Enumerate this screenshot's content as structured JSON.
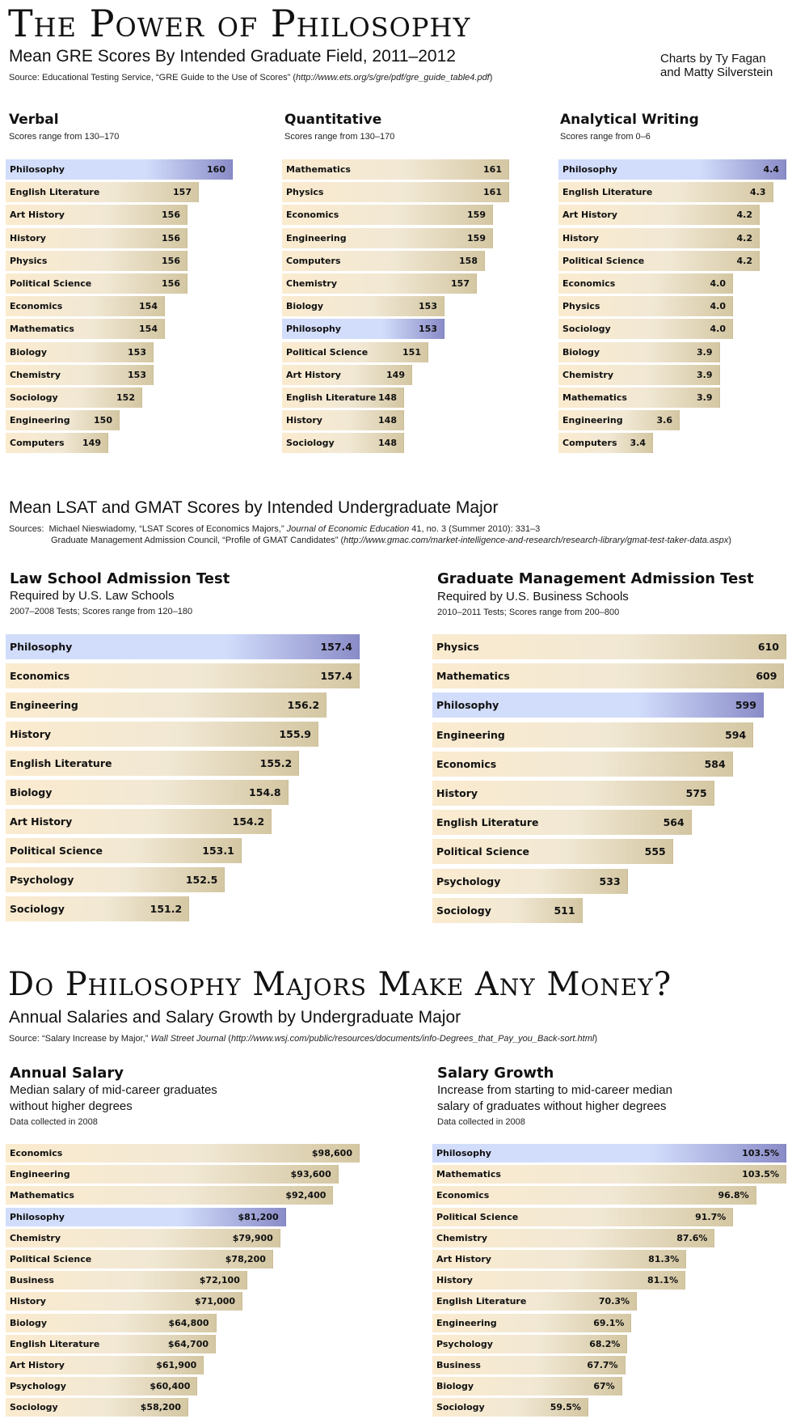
{
  "header": {
    "title": "The Power of Philosophy",
    "subtitle": "Mean GRE Scores By Intended Graduate Field, 2011–2012",
    "source_prefix": "Source: Educational Testing Service, “GRE Guide to the Use of Scores” (",
    "source_url": "http://www.ets.org/s/gre/pdf/gre_guide_table4.pdf",
    "source_suffix": ")",
    "credit_line1": "Charts by Ty Fagan",
    "credit_line2": "and Matty Silverstein"
  },
  "section2": {
    "subtitle": "Mean LSAT and GMAT Scores by Intended Undergraduate Major",
    "sources_label": "Sources:",
    "source1_prefix": "Michael Nieswiadomy, “LSAT Scores of Economics Majors,” ",
    "source1_journal": "Journal of Economic Education",
    "source1_suffix": " 41, no. 3 (Summer 2010): 331–3",
    "source2_prefix": "Graduate Management Admission Council, “Profile of GMAT Candidates” (",
    "source2_url": "http://www.gmac.com/market-intelligence-and-research/research-library/gmat-test-taker-data.aspx",
    "source2_suffix": ")"
  },
  "section3": {
    "title": "Do Philosophy Majors Make Any Money?",
    "subtitle": "Annual Salaries and Salary Growth by Undergraduate Major",
    "source_prefix": "Source: “Salary Increase by Major,” ",
    "source_journal": "Wall Street Journal",
    "source_mid": " (",
    "source_url": "http://www.wsj.com/public/resources/documents/info-Degrees_that_Pay_you_Back-sort.html",
    "source_suffix": ")"
  },
  "colors": {
    "highlight": "#d2ddfb",
    "highlight_end": "#8a8cc8",
    "bar": "#fbebcf",
    "bar_end": "#d4c7a3"
  },
  "chart_data": [
    {
      "id": "verbal",
      "type": "bar",
      "orientation": "horizontal",
      "title": "Verbal",
      "desc": "Scores range from 130–170",
      "highlight": "Philosophy",
      "categories": [
        "Philosophy",
        "English Literature",
        "Art History",
        "History",
        "Physics",
        "Political Science",
        "Economics",
        "Mathematics",
        "Biology",
        "Chemistry",
        "Sociology",
        "Engineering",
        "Computers"
      ],
      "values": [
        160,
        157,
        156,
        156,
        156,
        156,
        154,
        154,
        153,
        153,
        152,
        150,
        149
      ],
      "labels": [
        "160",
        "157",
        "156",
        "156",
        "156",
        "156",
        "154",
        "154",
        "153",
        "153",
        "152",
        "150",
        "149"
      ]
    },
    {
      "id": "quant",
      "type": "bar",
      "orientation": "horizontal",
      "title": "Quantitative",
      "desc": "Scores range from 130–170",
      "highlight": "Philosophy",
      "categories": [
        "Mathematics",
        "Physics",
        "Economics",
        "Engineering",
        "Computers",
        "Chemistry",
        "Biology",
        "Philosophy",
        "Political Science",
        "Art History",
        "English Literature",
        "History",
        "Sociology"
      ],
      "values": [
        161,
        161,
        159,
        159,
        158,
        157,
        153,
        153,
        151,
        149,
        148,
        148,
        148
      ],
      "labels": [
        "161",
        "161",
        "159",
        "159",
        "158",
        "157",
        "153",
        "153",
        "151",
        "149",
        "148",
        "148",
        "148"
      ]
    },
    {
      "id": "aw",
      "type": "bar",
      "orientation": "horizontal",
      "title": "Analytical Writing",
      "desc": "Scores range from 0–6",
      "highlight": "Philosophy",
      "categories": [
        "Philosophy",
        "English Literature",
        "Art History",
        "History",
        "Political Science",
        "Economics",
        "Physics",
        "Sociology",
        "Biology",
        "Chemistry",
        "Mathematics",
        "Engineering",
        "Computers"
      ],
      "values": [
        4.4,
        4.3,
        4.2,
        4.2,
        4.2,
        4.0,
        4.0,
        4.0,
        3.9,
        3.9,
        3.9,
        3.6,
        3.4
      ],
      "labels": [
        "4.4",
        "4.3",
        "4.2",
        "4.2",
        "4.2",
        "4.0",
        "4.0",
        "4.0",
        "3.9",
        "3.9",
        "3.9",
        "3.6",
        "3.4"
      ]
    },
    {
      "id": "lsat",
      "type": "bar",
      "orientation": "horizontal",
      "title": "Law School Admission Test",
      "desc": "Required by U.S. Law Schools",
      "note": "2007–2008 Tests; Scores range from 120–180",
      "highlight": "Philosophy",
      "categories": [
        "Philosophy",
        "Economics",
        "Engineering",
        "History",
        "English Literature",
        "Biology",
        "Art History",
        "Political Science",
        "Psychology",
        "Sociology"
      ],
      "values": [
        157.4,
        157.4,
        156.2,
        155.9,
        155.2,
        154.8,
        154.2,
        153.1,
        152.5,
        151.2
      ],
      "labels": [
        "157.4",
        "157.4",
        "156.2",
        "155.9",
        "155.2",
        "154.8",
        "154.2",
        "153.1",
        "152.5",
        "151.2"
      ]
    },
    {
      "id": "gmat",
      "type": "bar",
      "orientation": "horizontal",
      "title": "Graduate Management Admission Test",
      "desc": "Required by U.S. Business Schools",
      "note": "2010–2011 Tests; Scores range from 200–800",
      "highlight": "Philosophy",
      "categories": [
        "Physics",
        "Mathematics",
        "Philosophy",
        "Engineering",
        "Economics",
        "History",
        "English Literature",
        "Political Science",
        "Psychology",
        "Sociology"
      ],
      "values": [
        610,
        609,
        599,
        594,
        584,
        575,
        564,
        555,
        533,
        511
      ],
      "labels": [
        "610",
        "609",
        "599",
        "594",
        "584",
        "575",
        "564",
        "555",
        "533",
        "511"
      ]
    },
    {
      "id": "salary",
      "type": "bar",
      "orientation": "horizontal",
      "title": "Annual Salary",
      "desc_line1": "Median salary of mid-career graduates",
      "desc_line2": "without higher degrees",
      "note": "Data collected in 2008",
      "highlight": "Philosophy",
      "categories": [
        "Economics",
        "Engineering",
        "Mathematics",
        "Philosophy",
        "Chemistry",
        "Political Science",
        "Business",
        "History",
        "Biology",
        "English Literature",
        "Art History",
        "Psychology",
        "Sociology"
      ],
      "values": [
        98600,
        93600,
        92400,
        81200,
        79900,
        78200,
        72100,
        71000,
        64800,
        64700,
        61900,
        60400,
        58200
      ],
      "labels": [
        "$98,600",
        "$93,600",
        "$92,400",
        "$81,200",
        "$79,900",
        "$78,200",
        "$72,100",
        "$71,000",
        "$64,800",
        "$64,700",
        "$61,900",
        "$60,400",
        "$58,200"
      ]
    },
    {
      "id": "growth",
      "type": "bar",
      "orientation": "horizontal",
      "title": "Salary Growth",
      "desc_line1": "Increase from starting to mid-career median",
      "desc_line2": "salary of graduates without higher degrees",
      "note": "Data collected in 2008",
      "highlight": "Philosophy",
      "categories": [
        "Philosophy",
        "Mathematics",
        "Economics",
        "Political Science",
        "Chemistry",
        "Art History",
        "History",
        "English Literature",
        "Engineering",
        "Psychology",
        "Business",
        "Biology",
        "Sociology"
      ],
      "values": [
        103.5,
        103.5,
        96.8,
        91.7,
        87.6,
        81.3,
        81.1,
        70.3,
        69.1,
        68.2,
        67.7,
        67,
        59.5
      ],
      "labels": [
        "103.5%",
        "103.5%",
        "96.8%",
        "91.7%",
        "87.6%",
        "81.3%",
        "81.1%",
        "70.3%",
        "69.1%",
        "68.2%",
        "67.7%",
        "67%",
        "59.5%"
      ]
    }
  ]
}
